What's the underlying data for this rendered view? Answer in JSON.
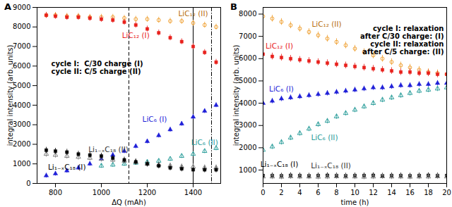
{
  "chart_data": [
    {
      "type": "scatter",
      "title": "A",
      "x_label": "ΔQ (mAh)",
      "y_label": "integral intensity (arb. units)",
      "xlim": [
        720,
        1520
      ],
      "xticks": [
        800,
        1000,
        1200,
        1400
      ],
      "ylim": [
        0,
        9000
      ],
      "yticks": [
        0,
        1000,
        2000,
        3000,
        4000,
        5000,
        6000,
        7000,
        8000,
        9000
      ],
      "annotation": [
        "cycle I:  C/30 charge (I)",
        "cycle II: C/5 charge (II)"
      ],
      "vlines": [
        {
          "x": 1120,
          "line_style": "dashed"
        },
        {
          "x": 1400,
          "line_style": "solid"
        },
        {
          "x": 1480,
          "line_style": "dashdot"
        }
      ],
      "x": [
        760,
        800,
        850,
        900,
        950,
        1000,
        1050,
        1100,
        1150,
        1200,
        1250,
        1300,
        1350,
        1400,
        1450,
        1500
      ],
      "series": [
        {
          "name": "LiC₁₂ (II)",
          "color": "#f0a030",
          "marker": "circle-open",
          "error": 150,
          "values": [
            8600,
            8600,
            8550,
            8550,
            8500,
            8500,
            8500,
            8450,
            8400,
            8400,
            8350,
            8300,
            8300,
            8200,
            8100,
            8000
          ]
        },
        {
          "name": "LiC₁₂ (I)",
          "color": "#e8201c",
          "marker": "square",
          "error": 150,
          "values": [
            8600,
            8550,
            8500,
            8500,
            8450,
            8400,
            8350,
            8250,
            8100,
            7900,
            7700,
            7450,
            7250,
            7000,
            6700,
            6200
          ]
        },
        {
          "name": "LiC₆ (I)",
          "color": "#1f1fd8",
          "marker": "triangle",
          "error": 120,
          "values": [
            400,
            500,
            650,
            800,
            1000,
            1250,
            1450,
            1650,
            1900,
            2150,
            2450,
            2750,
            3050,
            3400,
            3700,
            4000
          ]
        },
        {
          "name": "LiC₆ (II)",
          "color": "#2a9d9a",
          "marker": "triangle-open",
          "error": 120,
          "values": [
            null,
            null,
            null,
            null,
            null,
            900,
            950,
            1000,
            1050,
            1100,
            1150,
            1250,
            1400,
            1500,
            1650,
            1800
          ]
        },
        {
          "name": "Li₁₋ₓC₁₈ (II)",
          "color": "#808080",
          "marker": "triangle-open",
          "error": 150,
          "values": [
            1500,
            1450,
            1400,
            1350,
            1300,
            1250,
            1200,
            1150,
            1100,
            1000,
            950,
            900,
            850,
            850,
            800,
            800
          ]
        },
        {
          "name": "Li₁₋ₓC₁₈ (I)",
          "color": "#000000",
          "marker": "square",
          "error": 150,
          "values": [
            1700,
            1650,
            1600,
            1500,
            1450,
            1400,
            1300,
            1200,
            1100,
            1000,
            900,
            800,
            750,
            700,
            700,
            700
          ]
        }
      ]
    },
    {
      "type": "scatter",
      "title": "B",
      "x_label": "time (h)",
      "y_label": "integral intensity (arb. units)",
      "xlim": [
        0,
        20
      ],
      "xticks": [
        0,
        2,
        4,
        6,
        8,
        10,
        12,
        14,
        16,
        18,
        20
      ],
      "ylim": [
        400,
        8300
      ],
      "yticks": [
        1000,
        2000,
        3000,
        4000,
        5000,
        6000,
        7000,
        8000
      ],
      "annotation": [
        "cycle I: relaxation",
        "after C/30 charge: (I)",
        "cycle II: relaxation",
        "after C/5 charge: (II)"
      ],
      "x": [
        0,
        1,
        2,
        3,
        4,
        5,
        6,
        7,
        8,
        9,
        10,
        11,
        12,
        13,
        14,
        15,
        16,
        17,
        18,
        19,
        20
      ],
      "series": [
        {
          "name": "LiC₁₂ (II)",
          "color": "#f0a030",
          "marker": "circle-open",
          "error": 150,
          "values": [
            7900,
            7800,
            7650,
            7500,
            7350,
            7200,
            7050,
            6900,
            6750,
            6600,
            6450,
            6300,
            6150,
            6000,
            5850,
            5700,
            5600,
            5500,
            5400,
            5350,
            5300
          ]
        },
        {
          "name": "LiC₁₂ (I)",
          "color": "#e8201c",
          "marker": "square",
          "error": 150,
          "values": [
            6200,
            6100,
            6050,
            6000,
            5950,
            5900,
            5850,
            5800,
            5750,
            5700,
            5650,
            5600,
            5550,
            5500,
            5450,
            5400,
            5400,
            5350,
            5350,
            5300,
            5300
          ]
        },
        {
          "name": "LiC₆ (I)",
          "color": "#1f1fd8",
          "marker": "triangle",
          "error": 120,
          "values": [
            4000,
            4100,
            4200,
            4250,
            4300,
            4350,
            4400,
            4450,
            4500,
            4550,
            4600,
            4650,
            4700,
            4700,
            4750,
            4800,
            4800,
            4850,
            4850,
            4900,
            4900
          ]
        },
        {
          "name": "LiC₆ (II)",
          "color": "#2a9d9a",
          "marker": "triangle-open",
          "error": 120,
          "values": [
            1900,
            2050,
            2250,
            2450,
            2650,
            2850,
            3050,
            3200,
            3400,
            3550,
            3700,
            3850,
            4000,
            4150,
            4250,
            4350,
            4450,
            4550,
            4600,
            4650,
            4700
          ]
        },
        {
          "name": "Li₁₋ₓC₁₈ (I)",
          "color": "#000000",
          "marker": "square",
          "error": 120,
          "values": [
            750,
            750,
            740,
            760,
            750,
            740,
            750,
            760,
            750,
            740,
            750,
            750,
            760,
            740,
            750,
            750,
            740,
            750,
            760,
            750,
            750
          ]
        },
        {
          "name": "Li₁₋ₓC₁₈ (II)",
          "color": "#808080",
          "marker": "triangle-open",
          "error": 120,
          "values": [
            700,
            700,
            690,
            710,
            700,
            700,
            690,
            700,
            710,
            700,
            700,
            690,
            700,
            710,
            700,
            700,
            690,
            700,
            700,
            710,
            700
          ]
        }
      ]
    }
  ]
}
